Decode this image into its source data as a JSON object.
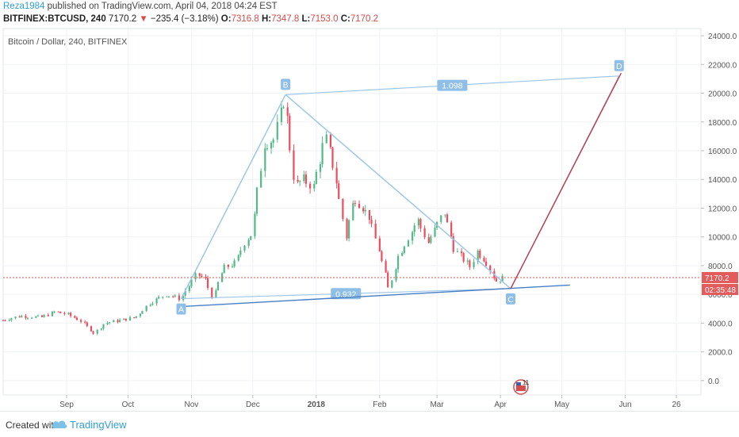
{
  "header": {
    "username": "Reza1984",
    "published": "published on TradingView.com, April 04, 2018 04:24 EST",
    "symbol": "BITFINEX:BTCUSD, 240",
    "last": "7170.2",
    "change": "−235.4 (−3.18%)",
    "open_label": "O:",
    "open": "7316.8",
    "high_label": "H:",
    "high": "7347.8",
    "low_label": "L:",
    "low": "7153.0",
    "close_label": "C:",
    "close": "7170.2"
  },
  "chart_data": {
    "type": "candlestick",
    "title": "Bitcoin / Dollar, 240, BITFINEX",
    "ylim": [
      -1000,
      24500
    ],
    "xlim": [
      "2017-08-01",
      "2018-07-08"
    ],
    "y_ticks": [
      "24000.0",
      "22000.0",
      "20000.0",
      "18000.0",
      "16000.0",
      "14000.0",
      "12000.0",
      "10000.0",
      "8000.0",
      "6000.0",
      "4000.0",
      "2000.0",
      "0.0"
    ],
    "x_ticks": [
      {
        "date": "2017-09-01",
        "label": "Sep"
      },
      {
        "date": "2017-10-01",
        "label": "Oct"
      },
      {
        "date": "2017-11-01",
        "label": "Nov"
      },
      {
        "date": "2017-12-01",
        "label": "Dec"
      },
      {
        "date": "2018-01-01",
        "label": "2018"
      },
      {
        "date": "2018-02-01",
        "label": "Feb"
      },
      {
        "date": "2018-03-01",
        "label": "Mar"
      },
      {
        "date": "2018-04-01",
        "label": "Apr"
      },
      {
        "date": "2018-05-01",
        "label": "May"
      },
      {
        "date": "2018-06-01",
        "label": "Jun"
      },
      {
        "date": "2018-06-26",
        "label": "26"
      }
    ],
    "price_path": [
      [
        "2017-08-01",
        4200
      ],
      [
        "2017-08-10",
        4500
      ],
      [
        "2017-08-20",
        4400
      ],
      [
        "2017-08-27",
        4800
      ],
      [
        "2017-09-02",
        4600
      ],
      [
        "2017-09-08",
        4200
      ],
      [
        "2017-09-15",
        3300
      ],
      [
        "2017-09-20",
        4000
      ],
      [
        "2017-09-28",
        4200
      ],
      [
        "2017-10-05",
        4400
      ],
      [
        "2017-10-12",
        5400
      ],
      [
        "2017-10-20",
        6000
      ],
      [
        "2017-10-27",
        5700
      ],
      [
        "2017-11-04",
        7400
      ],
      [
        "2017-11-08",
        7100
      ],
      [
        "2017-11-12",
        5700
      ],
      [
        "2017-11-17",
        7800
      ],
      [
        "2017-11-23",
        8200
      ],
      [
        "2017-11-28",
        9800
      ],
      [
        "2017-12-01",
        10200
      ],
      [
        "2017-12-07",
        16500
      ],
      [
        "2017-12-12",
        16800
      ],
      [
        "2017-12-17",
        19700
      ],
      [
        "2017-12-22",
        13500
      ],
      [
        "2017-12-26",
        14000
      ],
      [
        "2017-12-31",
        13500
      ],
      [
        "2018-01-06",
        17000
      ],
      [
        "2018-01-10",
        14800
      ],
      [
        "2018-01-16",
        10000
      ],
      [
        "2018-01-20",
        12800
      ],
      [
        "2018-01-27",
        11500
      ],
      [
        "2018-02-02",
        8600
      ],
      [
        "2018-02-06",
        6300
      ],
      [
        "2018-02-10",
        8500
      ],
      [
        "2018-02-20",
        11200
      ],
      [
        "2018-02-25",
        9600
      ],
      [
        "2018-03-04",
        11500
      ],
      [
        "2018-03-05",
        11700
      ],
      [
        "2018-03-10",
        9100
      ],
      [
        "2018-03-18",
        7900
      ],
      [
        "2018-03-21",
        9000
      ],
      [
        "2018-03-26",
        8200
      ],
      [
        "2018-03-30",
        6900
      ],
      [
        "2018-04-02",
        7100
      ],
      [
        "2018-04-04",
        7170
      ]
    ],
    "pattern": {
      "points": [
        {
          "label": "A",
          "date": "2017-10-27",
          "price": 5700
        },
        {
          "label": "B",
          "date": "2017-12-17",
          "price": 19900
        },
        {
          "label": "C",
          "date": "2018-04-06",
          "price": 6400
        },
        {
          "label": "D",
          "date": "2018-05-29",
          "price": 21200
        }
      ],
      "ratios": [
        {
          "label": "1.098",
          "from": "B",
          "to": "D"
        },
        {
          "label": "0.932",
          "from": "A",
          "to": "C"
        }
      ]
    },
    "trendline": {
      "from": {
        "date": "2017-10-27",
        "price": 5150
      },
      "to": {
        "date": "2018-05-05",
        "price": 6650
      }
    },
    "projection": {
      "from": {
        "date": "2018-04-06",
        "price": 6400
      },
      "to": {
        "date": "2018-05-30",
        "price": 21400
      }
    },
    "last_price_line": 7170.2,
    "price_label": "7170.2",
    "countdown_label": "02:35:48",
    "event_badge": {
      "date": "2018-04-11",
      "label": "11"
    }
  },
  "footer": {
    "created": "Created with",
    "brand": "TradingView"
  },
  "colors": {
    "up": "#53b987",
    "down": "#eb4d5c",
    "pattern": "#9ec6e8",
    "pattern_label_bg": "#8fbfe6",
    "trendline": "#4b7fc4",
    "projection": "#c0343f",
    "price_tag": "#e35b5b",
    "grid": "#f0f2f4"
  }
}
